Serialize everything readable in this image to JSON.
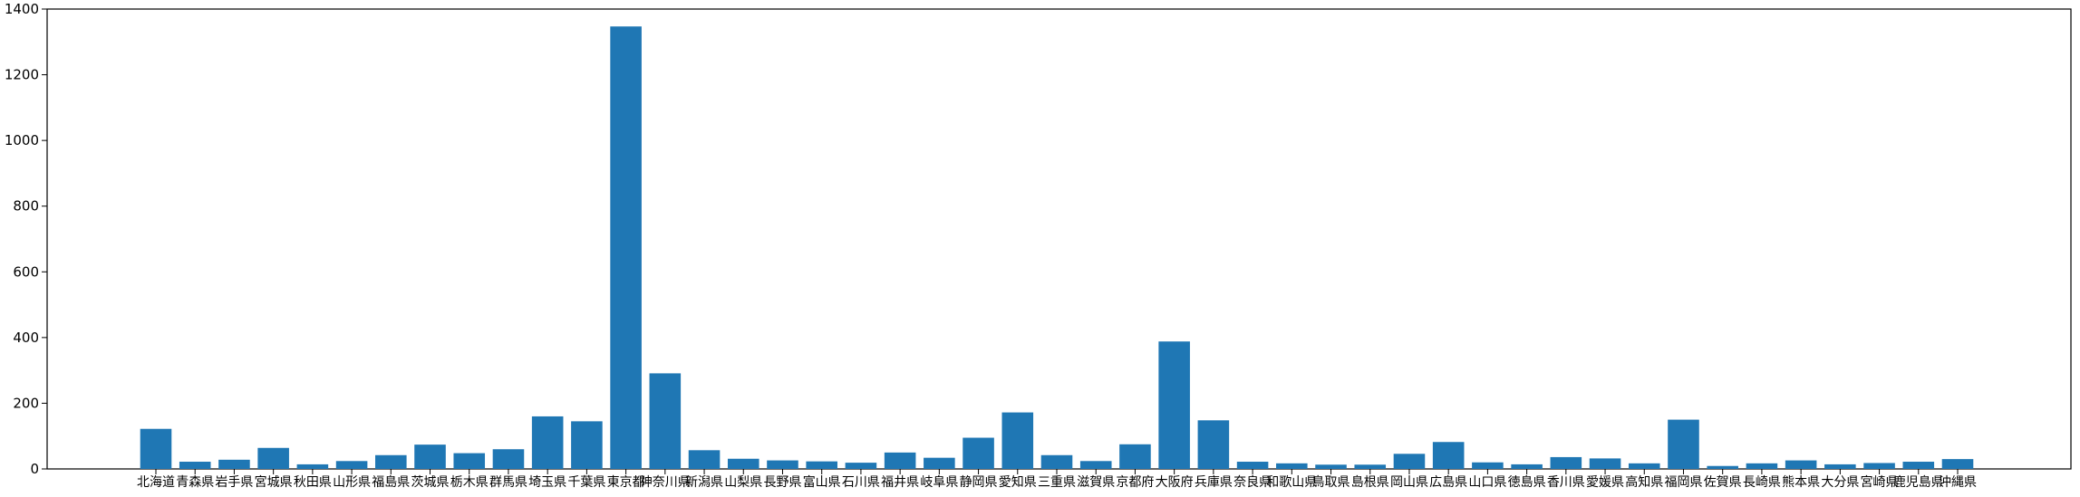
{
  "chart_data": {
    "type": "bar",
    "title": "",
    "xlabel": "",
    "ylabel": "",
    "ylim": [
      0,
      1400
    ],
    "yticks": [
      0,
      200,
      400,
      600,
      800,
      1000,
      1200,
      1400
    ],
    "grid": false,
    "colors": {
      "bar": "#1f77b4",
      "axis": "#000000",
      "background": "#ffffff"
    },
    "categories": [
      "北海道",
      "青森県",
      "岩手県",
      "宮城県",
      "秋田県",
      "山形県",
      "福島県",
      "茨城県",
      "栃木県",
      "群馬県",
      "埼玉県",
      "千葉県",
      "東京都",
      "神奈川県",
      "新潟県",
      "山梨県",
      "長野県",
      "富山県",
      "石川県",
      "福井県",
      "岐阜県",
      "静岡県",
      "愛知県",
      "三重県",
      "滋賀県",
      "京都府",
      "大阪府",
      "兵庫県",
      "奈良県",
      "和歌山県",
      "鳥取県",
      "島根県",
      "岡山県",
      "広島県",
      "山口県",
      "徳島県",
      "香川県",
      "愛媛県",
      "高知県",
      "福岡県",
      "佐賀県",
      "長崎県",
      "熊本県",
      "大分県",
      "宮崎県",
      "鹿児島県",
      "沖縄県"
    ],
    "values": [
      122,
      22,
      28,
      64,
      14,
      24,
      42,
      74,
      48,
      60,
      160,
      145,
      1347,
      291,
      57,
      31,
      26,
      23,
      19,
      50,
      34,
      95,
      172,
      42,
      24,
      75,
      388,
      148,
      22,
      17,
      13,
      13,
      46,
      82,
      20,
      14,
      36,
      32,
      17,
      150,
      9,
      17,
      26,
      14,
      18,
      22,
      30
    ]
  }
}
